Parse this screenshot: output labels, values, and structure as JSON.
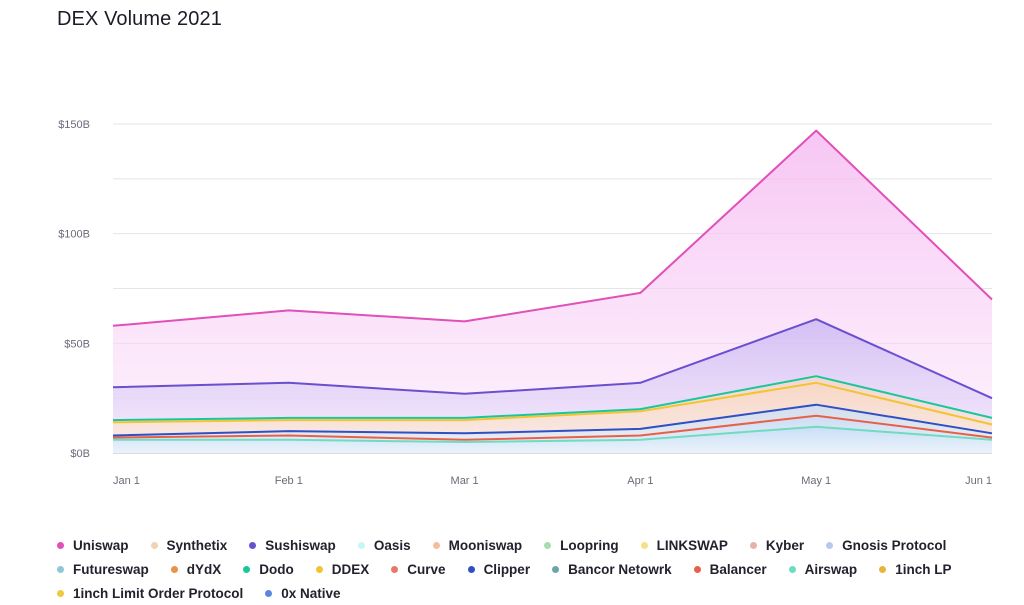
{
  "chart_data": {
    "type": "area",
    "title": "DEX Volume 2021",
    "x": [
      "Jan 1",
      "Feb 1",
      "Mar 1",
      "Apr 1",
      "May 1",
      "Jun 1"
    ],
    "y_ticks": [
      "$0B",
      "$50B",
      "$100B",
      "$150B"
    ],
    "ylim": [
      0,
      150
    ],
    "grid": true,
    "legend_position": "bottom",
    "series": [
      {
        "name": "Uniswap",
        "color": "#e14fb8",
        "values": [
          58,
          65,
          60,
          73,
          147,
          70
        ],
        "line": true
      },
      {
        "name": "Synthetix",
        "color": "#f0d2b4",
        "values": [
          30,
          32,
          27,
          32,
          61,
          25
        ],
        "line": false
      },
      {
        "name": "Sushiswap",
        "color": "#6a4fcf",
        "values": [
          30,
          32,
          27,
          32,
          61,
          25
        ],
        "line": true
      },
      {
        "name": "Oasis",
        "color": "#c8f5f5",
        "values": [
          15,
          16,
          16,
          20,
          35,
          16
        ],
        "line": false
      },
      {
        "name": "Mooniswap",
        "color": "#f3bf9a",
        "values": [
          15,
          16,
          16,
          20,
          35,
          16
        ],
        "line": false
      },
      {
        "name": "Loopring",
        "color": "#a7dbb0",
        "values": [
          15,
          16,
          16,
          20,
          35,
          16
        ],
        "line": false
      },
      {
        "name": "LINKSWAP",
        "color": "#f7e08a",
        "values": [
          15,
          16,
          16,
          20,
          35,
          16
        ],
        "line": false
      },
      {
        "name": "Kyber",
        "color": "#e8b2aa",
        "values": [
          15,
          16,
          16,
          20,
          35,
          16
        ],
        "line": false
      },
      {
        "name": "Gnosis Protocol",
        "color": "#b9c8ee",
        "values": [
          15,
          16,
          16,
          20,
          35,
          16
        ],
        "line": false
      },
      {
        "name": "Futureswap",
        "color": "#8fc7d6",
        "values": [
          15,
          16,
          16,
          20,
          35,
          16
        ],
        "line": false
      },
      {
        "name": "dYdX",
        "color": "#e8924a",
        "values": [
          15,
          16,
          16,
          20,
          35,
          16
        ],
        "line": false
      },
      {
        "name": "Dodo",
        "color": "#19c79a",
        "values": [
          15,
          16,
          16,
          20,
          35,
          16
        ],
        "line": true
      },
      {
        "name": "DDEX",
        "color": "#f2c433",
        "values": [
          14,
          15,
          15,
          19,
          32,
          13
        ],
        "line": true
      },
      {
        "name": "Curve",
        "color": "#e5796d",
        "values": [
          7,
          9,
          8,
          10,
          17,
          8
        ],
        "line": false
      },
      {
        "name": "Clipper",
        "color": "#2f4fc4",
        "values": [
          8,
          10,
          9,
          11,
          22,
          9
        ],
        "line": true
      },
      {
        "name": "Bancor Netowrk",
        "color": "#6aa6a9",
        "values": [
          7,
          8,
          6,
          8,
          16,
          7
        ],
        "line": false
      },
      {
        "name": "Balancer",
        "color": "#e8604a",
        "values": [
          7,
          8,
          6,
          8,
          17,
          7
        ],
        "line": true
      },
      {
        "name": "Airswap",
        "color": "#6fdcc0",
        "values": [
          6,
          6,
          5,
          6,
          12,
          6
        ],
        "line": true
      },
      {
        "name": "1inch LP",
        "color": "#e8b43a",
        "values": [
          6,
          6,
          5,
          6,
          12,
          6
        ],
        "line": false
      },
      {
        "name": "1inch Limit Order Protocol",
        "color": "#f0c93c",
        "values": [
          6,
          6,
          5,
          6,
          12,
          6
        ],
        "line": false
      },
      {
        "name": "0x Native",
        "color": "#5a86e0",
        "values": [
          6,
          6,
          5,
          6,
          12,
          6
        ],
        "line": false
      }
    ]
  }
}
